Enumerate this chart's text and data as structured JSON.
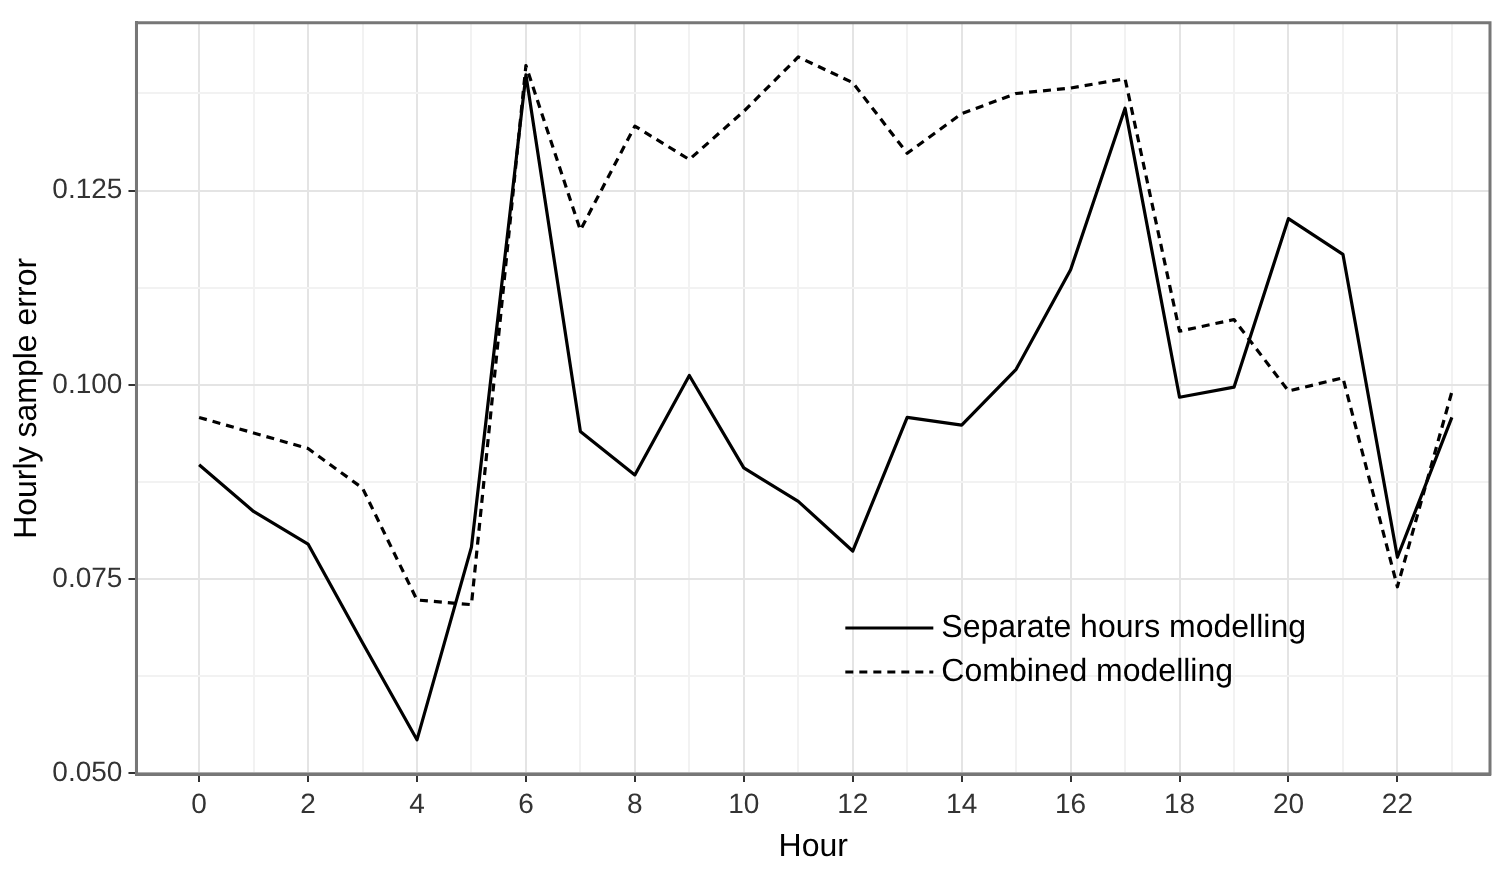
{
  "chart_data": {
    "type": "line",
    "xlabel": "Hour",
    "ylabel": "Hourly sample error",
    "x": [
      0,
      1,
      2,
      3,
      4,
      5,
      6,
      7,
      8,
      9,
      10,
      11,
      12,
      13,
      14,
      15,
      16,
      17,
      18,
      19,
      20,
      21,
      22,
      23
    ],
    "series": [
      {
        "name": "Separate hours modelling",
        "color": "#000000",
        "line_style": "solid",
        "values": [
          0.0897,
          0.0837,
          0.0795,
          0.0668,
          0.0543,
          0.0791,
          0.1399,
          0.094,
          0.0884,
          0.1012,
          0.0893,
          0.085,
          0.0786,
          0.0958,
          0.0948,
          0.102,
          0.1148,
          0.1356,
          0.0984,
          0.0997,
          0.1214,
          0.1168,
          0.0778,
          0.0958
        ]
      },
      {
        "name": "Combined modelling",
        "color": "#000000",
        "line_style": "dashed",
        "values": [
          0.0958,
          0.0938,
          0.0918,
          0.0867,
          0.0723,
          0.0717,
          0.1411,
          0.1199,
          0.1333,
          0.129,
          0.1352,
          0.1422,
          0.1389,
          0.1298,
          0.1349,
          0.1375,
          0.1382,
          0.1394,
          0.1069,
          0.1084,
          0.0992,
          0.1009,
          0.074,
          0.0991
        ]
      }
    ],
    "xlim": [
      -1.15,
      23.7
    ],
    "ylim": [
      0.0499,
      0.1466
    ],
    "xticks": [
      0,
      {
        "value": 1,
        "label": null
      },
      2,
      {
        "value": 3,
        "label": null
      },
      4,
      {
        "value": 5,
        "label": null
      },
      6,
      {
        "value": 7,
        "label": null
      },
      8,
      {
        "value": 9,
        "label": null
      },
      10,
      {
        "value": 11,
        "label": null
      },
      12,
      {
        "value": 13,
        "label": null
      },
      14,
      {
        "value": 15,
        "label": null
      },
      16,
      {
        "value": 17,
        "label": null
      },
      18,
      {
        "value": 19,
        "label": null
      },
      20,
      {
        "value": 21,
        "label": null
      },
      22,
      {
        "value": 23,
        "label": null
      }
    ],
    "yticks": [
      {
        "value": 0.05,
        "label": "0.050"
      },
      {
        "value": 0.0625,
        "label": null
      },
      {
        "value": 0.075,
        "label": "0.075"
      },
      {
        "value": 0.0875,
        "label": null
      },
      {
        "value": 0.1,
        "label": "0.100"
      },
      {
        "value": 0.1125,
        "label": null
      },
      {
        "value": 0.125,
        "label": "0.125"
      },
      {
        "value": 0.1375,
        "label": null
      }
    ],
    "grid": true,
    "legend": "bottom right",
    "marker": "none"
  }
}
